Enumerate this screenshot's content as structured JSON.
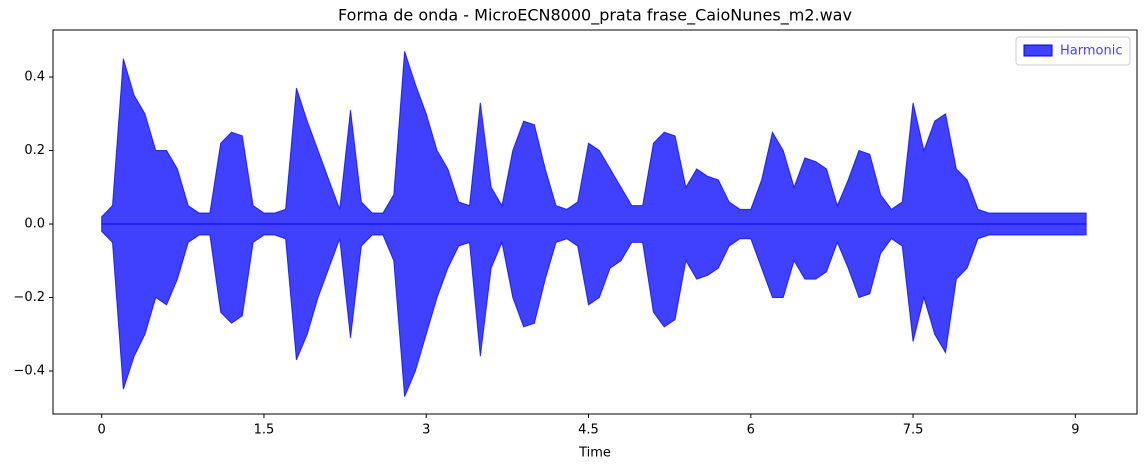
{
  "chart_data": {
    "type": "waveform",
    "title": "Forma de onda - MicroECN8000_prata frase_CaioNunes_m2.wav",
    "x_label": "Time",
    "x": [
      0.0,
      0.1,
      0.2,
      0.3,
      0.4,
      0.5,
      0.6,
      0.7,
      0.8,
      0.9,
      1.0,
      1.1,
      1.2,
      1.3,
      1.4,
      1.5,
      1.6,
      1.7,
      1.8,
      1.9,
      2.0,
      2.1,
      2.2,
      2.3,
      2.4,
      2.5,
      2.6,
      2.7,
      2.8,
      2.9,
      3.0,
      3.1,
      3.2,
      3.3,
      3.4,
      3.5,
      3.6,
      3.7,
      3.8,
      3.9,
      4.0,
      4.1,
      4.2,
      4.3,
      4.4,
      4.5,
      4.6,
      4.7,
      4.8,
      4.9,
      5.0,
      5.1,
      5.2,
      5.3,
      5.4,
      5.5,
      5.6,
      5.7,
      5.8,
      5.9,
      6.0,
      6.1,
      6.2,
      6.3,
      6.4,
      6.5,
      6.6,
      6.7,
      6.8,
      6.9,
      7.0,
      7.1,
      7.2,
      7.3,
      7.4,
      7.5,
      7.6,
      7.7,
      7.8,
      7.9,
      8.0,
      8.1,
      8.2,
      8.3,
      8.4,
      8.5,
      8.6,
      8.7,
      8.8,
      8.9,
      9.0,
      9.1
    ],
    "series": [
      {
        "name": "Harmonic",
        "color": "#0000ff",
        "values": [
          0.02,
          0.05,
          0.45,
          0.35,
          0.3,
          0.2,
          0.2,
          0.15,
          0.05,
          0.03,
          0.03,
          0.22,
          0.25,
          0.24,
          0.05,
          0.03,
          0.03,
          0.04,
          0.37,
          0.28,
          0.2,
          0.12,
          0.04,
          0.31,
          0.06,
          0.03,
          0.03,
          0.08,
          0.47,
          0.38,
          0.3,
          0.2,
          0.15,
          0.06,
          0.05,
          0.33,
          0.1,
          0.05,
          0.2,
          0.28,
          0.27,
          0.15,
          0.05,
          0.04,
          0.06,
          0.22,
          0.2,
          0.15,
          0.1,
          0.05,
          0.05,
          0.22,
          0.25,
          0.24,
          0.1,
          0.15,
          0.13,
          0.12,
          0.06,
          0.04,
          0.04,
          0.12,
          0.25,
          0.2,
          0.1,
          0.18,
          0.17,
          0.15,
          0.05,
          0.12,
          0.2,
          0.19,
          0.08,
          0.04,
          0.06,
          0.33,
          0.2,
          0.28,
          0.3,
          0.15,
          0.12,
          0.04,
          0.03,
          0.03,
          0.03,
          0.03,
          0.03,
          0.03,
          0.03,
          0.03,
          0.03,
          0.03
        ],
        "lower": [
          -0.02,
          -0.05,
          -0.45,
          -0.36,
          -0.3,
          -0.2,
          -0.22,
          -0.15,
          -0.05,
          -0.03,
          -0.03,
          -0.24,
          -0.27,
          -0.25,
          -0.05,
          -0.03,
          -0.03,
          -0.04,
          -0.37,
          -0.3,
          -0.2,
          -0.12,
          -0.04,
          -0.31,
          -0.06,
          -0.03,
          -0.03,
          -0.1,
          -0.47,
          -0.4,
          -0.3,
          -0.2,
          -0.12,
          -0.06,
          -0.05,
          -0.36,
          -0.12,
          -0.05,
          -0.2,
          -0.28,
          -0.27,
          -0.15,
          -0.05,
          -0.04,
          -0.06,
          -0.22,
          -0.2,
          -0.12,
          -0.1,
          -0.05,
          -0.05,
          -0.24,
          -0.28,
          -0.26,
          -0.1,
          -0.15,
          -0.14,
          -0.12,
          -0.06,
          -0.04,
          -0.04,
          -0.12,
          -0.2,
          -0.2,
          -0.1,
          -0.15,
          -0.15,
          -0.13,
          -0.05,
          -0.12,
          -0.2,
          -0.19,
          -0.08,
          -0.04,
          -0.06,
          -0.32,
          -0.2,
          -0.3,
          -0.35,
          -0.15,
          -0.12,
          -0.04,
          -0.03,
          -0.03,
          -0.03,
          -0.03,
          -0.03,
          -0.03,
          -0.03,
          -0.03,
          -0.03,
          -0.03
        ]
      }
    ],
    "xlim": [
      -0.45,
      9.57
    ],
    "ylim": [
      -0.517,
      0.528
    ],
    "xticks": [
      0,
      1.5,
      3,
      4.5,
      6,
      7.5,
      9
    ],
    "yticks": [
      {
        "value": -0.4,
        "label": "−0.4"
      },
      {
        "value": -0.2,
        "label": "−0.2"
      },
      {
        "value": 0,
        "label": "0.0"
      },
      0.2,
      0.4
    ],
    "legend": "upper right"
  }
}
